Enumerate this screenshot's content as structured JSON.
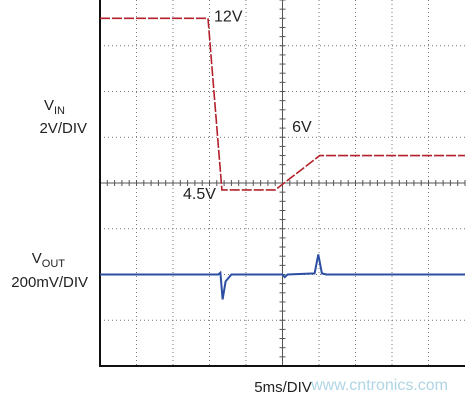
{
  "chart_data": {
    "type": "scope",
    "vin_label": "V",
    "vin_sub": "IN",
    "vin_scale": "2V/DIV",
    "vout_label": "V",
    "vout_sub": "OUT",
    "vout_scale": "200mV/DIV",
    "x_label": "5ms/DIV",
    "watermark": "www.cntronics.com",
    "xlim": [
      0,
      50
    ],
    "ylim": [
      -3.2,
      12.8
    ],
    "y2lim": [
      -400,
      1200
    ],
    "series": [
      {
        "name": "VIN",
        "color": "#b3202a",
        "axis": "y",
        "x": [
          0,
          14.8,
          16.7,
          24,
          30.1,
          50
        ],
        "values": [
          12,
          12,
          4.5,
          4.5,
          6,
          6
        ]
      },
      {
        "name": "VOUT",
        "color": "#2c4ea3",
        "axis": "y2",
        "x": [
          0,
          16.2,
          16.5,
          16.8,
          17.2,
          18,
          25,
          25.3,
          25.7,
          29.4,
          29.9,
          30.4,
          31,
          50
        ],
        "values": [
          0,
          0,
          8,
          -109,
          -30,
          0,
          0,
          -12,
          0,
          5,
          88,
          5,
          0,
          0
        ]
      }
    ],
    "annotations": [
      {
        "text": "12V",
        "x": 14.8,
        "y": 12
      },
      {
        "text": "4.5V",
        "x": 16.7,
        "y": 4.5
      },
      {
        "text": "6V",
        "x": 30.1,
        "y": 6
      }
    ]
  }
}
